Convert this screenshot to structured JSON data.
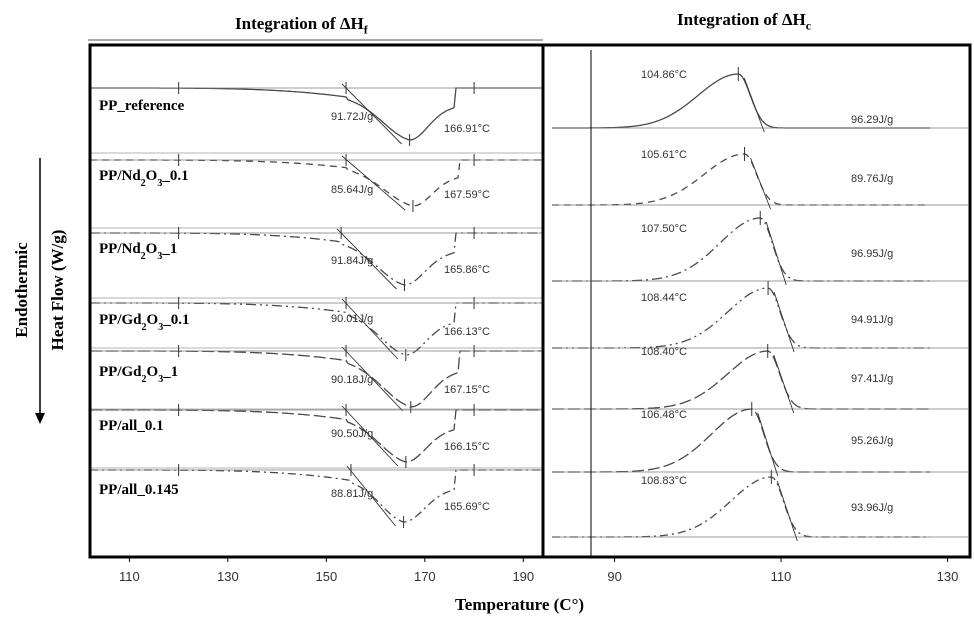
{
  "colors": {
    "curve": "#4a4a4a",
    "baseline": "#7a7a7a",
    "frame": "#000000",
    "text": "#000000",
    "annot": "#333333"
  },
  "figure": {
    "ylabel_line1": "Endothermic",
    "ylabel_line2": "Heat Flow (W/g)",
    "xlabel": "Temperature (C°)",
    "left_title": "Integration of ΔH",
    "left_title_sub": "f",
    "right_title": "Integration of ΔH",
    "right_title_sub": "c"
  },
  "chart_data": [
    {
      "type": "line",
      "title": "Integration of ΔHf",
      "xlabel": "Temperature (C°)",
      "ylabel": "Endothermic Heat Flow (W/g)",
      "xlim": [
        102,
        194
      ],
      "xticks": [
        110,
        130,
        150,
        170,
        190
      ],
      "series": [
        {
          "name": "PP_reference",
          "dash": "",
          "peak_x": 166.91,
          "peak_label": "166.91°C",
          "enthalpy_label": "91.72J/g",
          "onset_x": 154,
          "end_x": 176
        },
        {
          "name": "PP/Nd2O3_0.1",
          "dash": "7,5",
          "peak_x": 167.59,
          "peak_label": "167.59°C",
          "enthalpy_label": "85.64J/g",
          "onset_x": 154,
          "end_x": 177
        },
        {
          "name": "PP/Nd2O3_1",
          "dash": "10,4,2,4",
          "peak_x": 165.86,
          "peak_label": "165.86°C",
          "enthalpy_label": "91.84J/g",
          "onset_x": 153,
          "end_x": 176
        },
        {
          "name": "PP/Gd2O3_0.1",
          "dash": "10,4,2,4,2,4",
          "peak_x": 166.13,
          "peak_label": "166.13°C",
          "enthalpy_label": "90.01J/g",
          "onset_x": 154,
          "end_x": 176
        },
        {
          "name": "PP/Gd2O3_1",
          "dash": "12,4",
          "peak_x": 167.15,
          "peak_label": "167.15°C",
          "enthalpy_label": "90.18J/g",
          "onset_x": 154,
          "end_x": 177
        },
        {
          "name": "PP/all_0.1",
          "dash": "12,4",
          "peak_x": 166.15,
          "peak_label": "166.15°C",
          "enthalpy_label": "90.50J/g",
          "onset_x": 154,
          "end_x": 176
        },
        {
          "name": "PP/all_0.145",
          "dash": "8,4,2,4",
          "peak_x": 165.69,
          "peak_label": "165.69°C",
          "enthalpy_label": "88.81J/g",
          "onset_x": 155,
          "end_x": 176
        }
      ],
      "row_labels": [
        {
          "base": "PP_reference",
          "parts": [
            [
              "PP_reference",
              ""
            ]
          ]
        },
        {
          "base": "PP/Nd2O3_0.1",
          "parts": [
            [
              "PP/Nd",
              ""
            ],
            [
              "2",
              "sub"
            ],
            [
              "O",
              ""
            ],
            [
              "3",
              "sub"
            ],
            [
              "_0.1",
              ""
            ]
          ]
        },
        {
          "base": "PP/Nd2O3_1",
          "parts": [
            [
              "PP/Nd",
              ""
            ],
            [
              "2",
              "sub"
            ],
            [
              "O",
              ""
            ],
            [
              "3",
              "sub"
            ],
            [
              "_1",
              ""
            ]
          ]
        },
        {
          "base": "PP/Gd2O3_0.1",
          "parts": [
            [
              "PP/Gd",
              ""
            ],
            [
              "2",
              "sub"
            ],
            [
              "O",
              ""
            ],
            [
              "3",
              "sub"
            ],
            [
              "_0.1",
              ""
            ]
          ]
        },
        {
          "base": "PP/Gd2O3_1",
          "parts": [
            [
              "PP/Gd",
              ""
            ],
            [
              "2",
              "sub"
            ],
            [
              "O",
              ""
            ],
            [
              "3",
              "sub"
            ],
            [
              "_1",
              ""
            ]
          ]
        },
        {
          "base": "PP/all_0.1",
          "parts": [
            [
              "PP/all_0.1",
              ""
            ]
          ]
        },
        {
          "base": "PP/all_0.145",
          "parts": [
            [
              "PP/all_0.145",
              ""
            ]
          ]
        }
      ]
    },
    {
      "type": "line",
      "title": "Integration of ΔHc",
      "xlabel": "Temperature (C°)",
      "xlim": [
        81.4,
        132.7
      ],
      "xticks": [
        90,
        110,
        130
      ],
      "series": [
        {
          "name": "PP_reference",
          "dash": "",
          "peak_x": 104.86,
          "peak_label": "104.86°C",
          "enthalpy_label": "96.29J/g"
        },
        {
          "name": "PP/Nd2O3_0.1",
          "dash": "7,5",
          "peak_x": 105.61,
          "peak_label": "105.61°C",
          "enthalpy_label": "89.76J/g"
        },
        {
          "name": "PP/Nd2O3_1",
          "dash": "10,4,2,4",
          "peak_x": 107.5,
          "peak_label": "107.50°C",
          "enthalpy_label": "96.95J/g"
        },
        {
          "name": "PP/Gd2O3_0.1",
          "dash": "10,4,2,4,2,4",
          "peak_x": 108.44,
          "peak_label": "108.44°C",
          "enthalpy_label": "94.91J/g"
        },
        {
          "name": "PP/Gd2O3_1",
          "dash": "12,4",
          "peak_x": 108.4,
          "peak_label": "108.40°C",
          "enthalpy_label": "97.41J/g"
        },
        {
          "name": "PP/all_0.1",
          "dash": "12,4",
          "peak_x": 106.48,
          "peak_label": "106.48°C",
          "enthalpy_label": "95.26J/g"
        },
        {
          "name": "PP/all_0.145",
          "dash": "8,4,2,4",
          "peak_x": 108.83,
          "peak_label": "108.83°C",
          "enthalpy_label": "93.96J/g"
        }
      ]
    }
  ]
}
